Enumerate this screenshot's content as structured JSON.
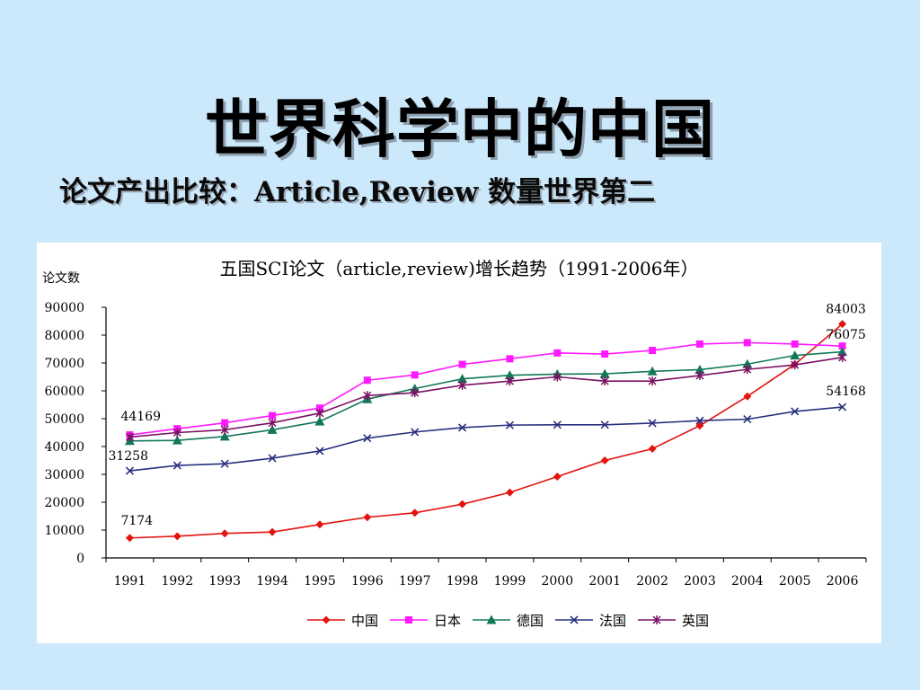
{
  "slide": {
    "title": "世界科学中的中国",
    "subtitle": "论文产出比较：Article,Review 数量世界第二"
  },
  "colors": {
    "background": "#cce8fb",
    "中国": "#e4130f",
    "日本": "#ff19ff",
    "德国": "#13785a",
    "法国": "#28307e",
    "英国": "#7a1063"
  },
  "chart_data": {
    "type": "line",
    "title": "五国SCI论文（article,review)增长趋势（1991-2006年）",
    "ylabel": "论文数",
    "xlabel": "",
    "ylim": [
      0,
      90000
    ],
    "yticks": [
      0,
      10000,
      20000,
      30000,
      40000,
      50000,
      60000,
      70000,
      80000,
      90000
    ],
    "categories": [
      "1991",
      "1992",
      "1993",
      "1994",
      "1995",
      "1996",
      "1997",
      "1998",
      "1999",
      "2000",
      "2001",
      "2002",
      "2003",
      "2004",
      "2005",
      "2006"
    ],
    "legend_position": "bottom",
    "grid": false,
    "series": [
      {
        "name": "中国",
        "marker": "diamond",
        "color": "#e4130f",
        "values": [
          7174,
          7800,
          8800,
          9300,
          12000,
          14600,
          16200,
          19300,
          23500,
          29200,
          35000,
          39200,
          47500,
          58000,
          69500,
          84003
        ]
      },
      {
        "name": "日本",
        "marker": "square",
        "color": "#ff19ff",
        "values": [
          44169,
          46400,
          48500,
          51100,
          53800,
          63800,
          65700,
          69500,
          71500,
          73600,
          73200,
          74500,
          76800,
          77300,
          76800,
          76075
        ]
      },
      {
        "name": "德国",
        "marker": "triangle",
        "color": "#13785a",
        "values": [
          42000,
          42200,
          43600,
          46000,
          49000,
          57000,
          60800,
          64300,
          65600,
          66000,
          66100,
          67000,
          67600,
          69600,
          72700,
          74000
        ]
      },
      {
        "name": "法国",
        "marker": "x",
        "color": "#28307e",
        "values": [
          31258,
          33200,
          33800,
          35800,
          38400,
          43000,
          45200,
          46800,
          47700,
          47800,
          47800,
          48400,
          49300,
          49800,
          52600,
          54168
        ]
      },
      {
        "name": "英国",
        "marker": "star",
        "color": "#7a1063",
        "values": [
          43400,
          45000,
          46000,
          48500,
          52000,
          58300,
          59300,
          62000,
          63500,
          65000,
          63500,
          63500,
          65500,
          67700,
          69300,
          72000
        ]
      }
    ],
    "annotations": [
      "84003",
      "76075",
      "54168",
      "44169",
      "31258",
      "7174"
    ]
  }
}
